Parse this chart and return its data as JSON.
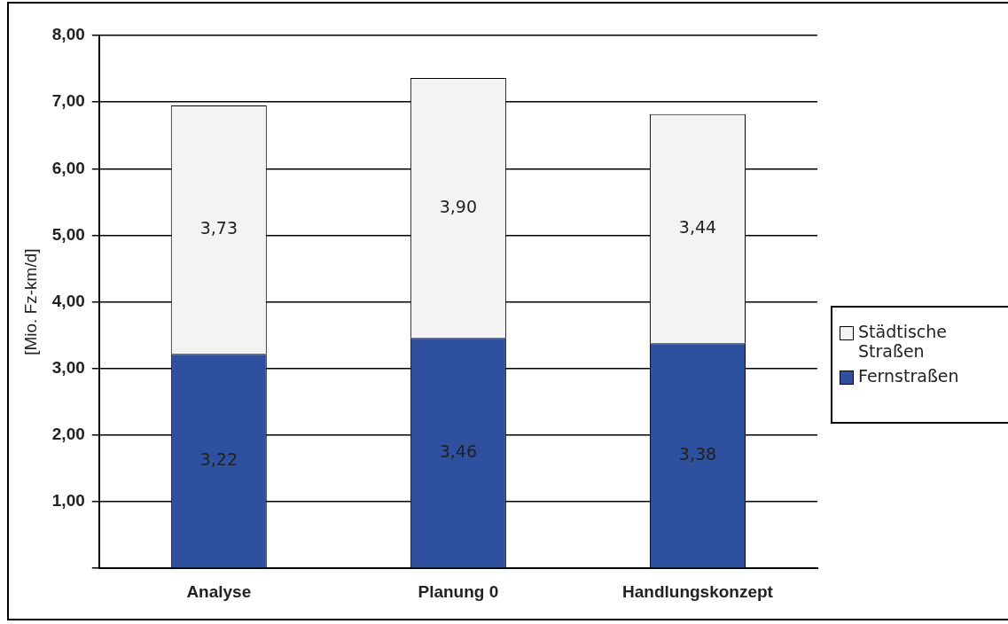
{
  "chart_data": {
    "type": "bar",
    "stacked": true,
    "ylabel": "[Mio. Fz-km/d]",
    "categories": [
      "Analyse",
      "Planung 0",
      "Handlungskonzept"
    ],
    "series": [
      {
        "name": "Fernstraßen",
        "color": "#2f4f9f",
        "values": [
          3.22,
          3.46,
          3.38
        ],
        "value_labels": [
          "3,22",
          "3,46",
          "3,38"
        ]
      },
      {
        "name": "Städtische Straßen",
        "color": "#f2f3f2",
        "values": [
          3.73,
          3.9,
          3.44
        ],
        "value_labels": [
          "3,73",
          "3,90",
          "3,44"
        ]
      }
    ],
    "ylim": [
      0,
      8
    ],
    "yticks": [
      {
        "value": 0,
        "label": null
      },
      {
        "value": 1,
        "label": "1,00"
      },
      {
        "value": 2,
        "label": "2,00"
      },
      {
        "value": 3,
        "label": "3,00"
      },
      {
        "value": 4,
        "label": "4,00"
      },
      {
        "value": 5,
        "label": "5,00"
      },
      {
        "value": 6,
        "label": "6,00"
      },
      {
        "value": 7,
        "label": "7,00"
      },
      {
        "value": 8,
        "label": "8,00"
      }
    ],
    "grid": "y",
    "legend": "right"
  }
}
